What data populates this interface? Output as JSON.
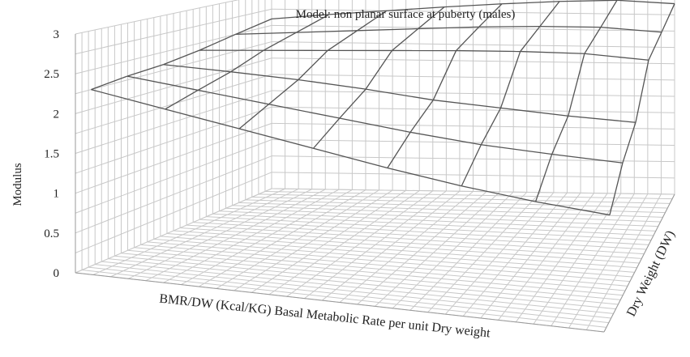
{
  "chart_data": {
    "type": "surface",
    "title": "Model: non planar surface at puberty (males)",
    "zlabel": "Modulus",
    "xlabel": "BMR/DW (Kcal/KG) Basal Metabolic Rate per unit Dry weight",
    "ylabel": "Dry Weight (DW)",
    "zlim": [
      0,
      3
    ],
    "z_ticks": [
      "0",
      "0.5",
      "1",
      "1.5",
      "2",
      "2.5",
      "3"
    ],
    "grid": true,
    "surface": {
      "rows_back_to_front": [
        [
          2.6,
          2.68,
          2.75,
          2.82,
          2.88,
          2.93,
          2.96,
          2.92
        ],
        [
          2.5,
          2.56,
          2.62,
          2.68,
          2.74,
          2.78,
          2.8,
          2.76
        ],
        [
          2.4,
          2.45,
          2.5,
          2.55,
          2.6,
          2.64,
          2.66,
          2.62
        ],
        [
          2.33,
          2.3,
          2.26,
          2.2,
          2.12,
          2.08,
          2.04,
          2.02
        ],
        [
          2.3,
          2.2,
          2.1,
          2.0,
          1.9,
          1.82,
          1.78,
          1.75
        ],
        [
          2.25,
          2.1,
          1.95,
          1.8,
          1.65,
          1.52,
          1.42,
          1.35
        ]
      ]
    }
  }
}
